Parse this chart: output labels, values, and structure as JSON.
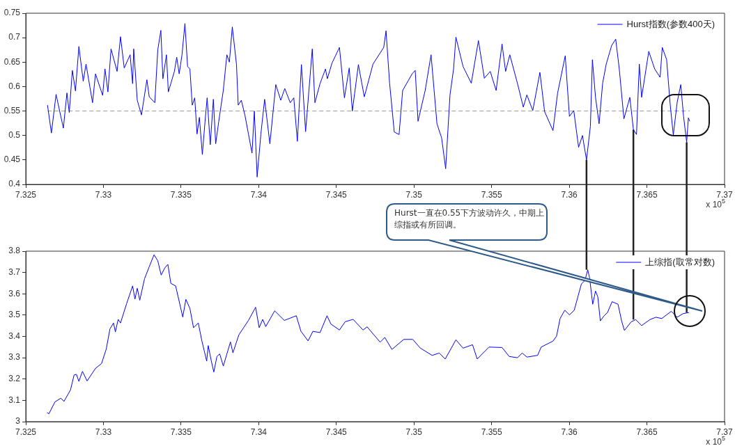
{
  "chart_data": [
    {
      "type": "line",
      "xlim": [
        7.325,
        7.37
      ],
      "xticks": [
        7.325,
        7.33,
        7.335,
        7.34,
        7.345,
        7.35,
        7.355,
        7.36,
        7.365,
        7.37
      ],
      "ylim": [
        0.4,
        0.75
      ],
      "yticks": [
        0.4,
        0.45,
        0.5,
        0.55,
        0.6,
        0.65,
        0.7,
        0.75
      ],
      "grid": false,
      "legend": "top right",
      "marker": "none",
      "line_style": "solid",
      "ref_lines": [
        {
          "axis": "y",
          "value": 0.55,
          "color": "#999999",
          "line_style": "dashed"
        },
        {
          "axis": "x",
          "value": 7.36111,
          "color": "#222222",
          "line_style": "solid"
        },
        {
          "axis": "x",
          "value": 7.36413,
          "color": "#222222",
          "line_style": "solid"
        },
        {
          "axis": "x",
          "value": 7.36756,
          "color": "#222222",
          "line_style": "solid"
        }
      ],
      "annotations": [
        "x 10$^{5}$"
      ],
      "series": [
        {
          "name": "Hurst指数(参数400天)",
          "color": "#0000ff",
          "x": [
            7.3264,
            7.32665,
            7.32695,
            7.32742,
            7.32765,
            7.3278,
            7.328,
            7.3282,
            7.32842,
            7.3287,
            7.32888,
            7.3293,
            7.32949,
            7.32995,
            7.3301,
            7.33029,
            7.33049,
            7.33088,
            7.3311,
            7.33134,
            7.33172,
            7.33188,
            7.33195,
            7.33218,
            7.33245,
            7.3328,
            7.33295,
            7.33331,
            7.3335,
            7.3337,
            7.33383,
            7.33406,
            7.33418,
            7.33457,
            7.33472,
            7.33488,
            7.33506,
            7.33525,
            7.33542,
            7.33557,
            7.33572,
            7.33588,
            7.33603,
            7.33618,
            7.33637,
            7.33654,
            7.33668,
            7.33688,
            7.33708,
            7.33723,
            7.33742,
            7.33772,
            7.33795,
            7.33811,
            7.3383,
            7.33857,
            7.33868,
            7.33888,
            7.33911,
            7.33934,
            7.33957,
            7.33972,
            7.3399,
            7.34014,
            7.34038,
            7.34072,
            7.3411,
            7.34142,
            7.34168,
            7.34203,
            7.34226,
            7.34249,
            7.34275,
            7.34302,
            7.34345,
            7.34362,
            7.34395,
            7.3443,
            7.34442,
            7.34472,
            7.3452,
            7.34552,
            7.34583,
            7.34603,
            7.34642,
            7.3468,
            7.34736,
            7.34805,
            7.3482,
            7.34843,
            7.34873,
            7.34904,
            7.34927,
            7.34988,
            7.35008,
            7.35026,
            7.35072,
            7.3511,
            7.35148,
            7.35178,
            7.35204,
            7.35232,
            7.35255,
            7.3527,
            7.35316,
            7.35369,
            7.35415,
            7.35453,
            7.35491,
            7.35529,
            7.35567,
            7.3559,
            7.35617,
            7.35666,
            7.35704,
            7.35727,
            7.35765,
            7.35811,
            7.35841,
            7.35895,
            7.35925,
            7.35974,
            7.36001,
            7.36029,
            7.3606,
            7.36085,
            7.36111,
            7.36136,
            7.36149,
            7.36169,
            7.36192,
            7.36215,
            7.36238,
            7.36273,
            7.36299,
            7.36322,
            7.36352,
            7.3639,
            7.36413,
            7.36433,
            7.36451,
            7.36466,
            7.36512,
            7.3655,
            7.36585,
            7.36599,
            7.36627,
            7.3665,
            7.3667,
            7.36695,
            7.36718,
            7.36736,
            7.36756,
            7.36767,
            7.36776
          ],
          "values": [
            0.562,
            0.505,
            0.584,
            0.515,
            0.587,
            0.547,
            0.633,
            0.591,
            0.682,
            0.611,
            0.646,
            0.567,
            0.626,
            0.582,
            0.636,
            0.589,
            0.677,
            0.631,
            0.702,
            0.638,
            0.665,
            0.606,
            0.677,
            0.572,
            0.542,
            0.614,
            0.579,
            0.567,
            0.675,
            0.715,
            0.616,
            0.665,
            0.589,
            0.631,
            0.66,
            0.626,
            0.665,
            0.729,
            0.641,
            0.636,
            0.562,
            0.577,
            0.503,
            0.537,
            0.461,
            0.527,
            0.577,
            0.481,
            0.574,
            0.483,
            0.527,
            0.592,
            0.665,
            0.65,
            0.722,
            0.645,
            0.562,
            0.572,
            0.542,
            0.503,
            0.464,
            0.55,
            0.415,
            0.503,
            0.574,
            0.483,
            0.604,
            0.572,
            0.596,
            0.567,
            0.577,
            0.488,
            0.645,
            0.508,
            0.677,
            0.567,
            0.606,
            0.636,
            0.616,
            0.648,
            0.68,
            0.577,
            0.638,
            0.55,
            0.645,
            0.579,
            0.646,
            0.68,
            0.714,
            0.607,
            0.507,
            0.502,
            0.592,
            0.626,
            0.633,
            0.529,
            0.592,
            0.665,
            0.524,
            0.495,
            0.432,
            0.583,
            0.636,
            0.701,
            0.641,
            0.607,
            0.694,
            0.617,
            0.631,
            0.592,
            0.687,
            0.631,
            0.665,
            0.607,
            0.558,
            0.583,
            0.551,
            0.629,
            0.549,
            0.51,
            0.587,
            0.663,
            0.539,
            0.551,
            0.476,
            0.5,
            0.45,
            0.519,
            0.655,
            0.578,
            0.524,
            0.607,
            0.646,
            0.684,
            0.697,
            0.636,
            0.534,
            0.578,
            0.512,
            0.502,
            0.646,
            0.578,
            0.672,
            0.636,
            0.619,
            0.68,
            0.655,
            0.563,
            0.501,
            0.568,
            0.604,
            0.539,
            0.486,
            0.536,
            0.529
          ]
        }
      ]
    },
    {
      "type": "line",
      "xlim": [
        7.325,
        7.37
      ],
      "xticks": [
        7.325,
        7.33,
        7.335,
        7.34,
        7.345,
        7.35,
        7.355,
        7.36,
        7.365,
        7.37
      ],
      "ylim": [
        3,
        3.8
      ],
      "yticks": [
        3,
        3.1,
        3.2,
        3.3,
        3.4,
        3.5,
        3.6,
        3.7,
        3.8
      ],
      "grid": false,
      "legend": "top right",
      "marker": "none",
      "line_style": "solid",
      "ref_lines": [
        {
          "axis": "x",
          "value": 7.36111,
          "color": "#222222",
          "line_style": "solid"
        },
        {
          "axis": "x",
          "value": 7.36413,
          "color": "#222222",
          "line_style": "solid"
        },
        {
          "axis": "x",
          "value": 7.36756,
          "color": "#222222",
          "line_style": "solid"
        }
      ],
      "annotations": [
        "x 10$^{5}$",
        "Hurst一直在0.55下方波动许久，中期上综指或有所回调。"
      ],
      "series": [
        {
          "name": "上综指(取常对数)",
          "color": "#0000ff",
          "x": [
            7.32637,
            7.32649,
            7.32688,
            7.32726,
            7.32746,
            7.32788,
            7.32811,
            7.32826,
            7.32842,
            7.32865,
            7.32895,
            7.32949,
            7.32988,
            7.33018,
            7.33042,
            7.33065,
            7.33077,
            7.33095,
            7.3311,
            7.33149,
            7.33188,
            7.33203,
            7.33218,
            7.33234,
            7.33265,
            7.33295,
            7.33326,
            7.3335,
            7.33372,
            7.33395,
            7.33415,
            7.33434,
            7.33465,
            7.33495,
            7.33511,
            7.33531,
            7.33557,
            7.3358,
            7.33611,
            7.33634,
            7.33665,
            7.33675,
            7.33695,
            7.33711,
            7.33731,
            7.33749,
            7.33772,
            7.33818,
            7.33834,
            7.33872,
            7.33934,
            7.3398,
            7.34003,
            7.34026,
            7.34045,
            7.34103,
            7.34165,
            7.34242,
            7.34272,
            7.34318,
            7.34349,
            7.34395,
            7.3444,
            7.34465,
            7.3452,
            7.34557,
            7.34608,
            7.34672,
            7.34698,
            7.34782,
            7.34812,
            7.34858,
            7.34934,
            7.34992,
            7.35041,
            7.35117,
            7.35163,
            7.35201,
            7.3527,
            7.35316,
            7.35377,
            7.35407,
            7.35483,
            7.35567,
            7.35613,
            7.35666,
            7.35697,
            7.35727,
            7.35796,
            7.35819,
            7.35895,
            7.35918,
            7.35941,
            7.35971,
            7.36001,
            7.36032,
            7.36078,
            7.36101,
            7.36119,
            7.36131,
            7.36151,
            7.36169,
            7.36184,
            7.362,
            7.36223,
            7.36246,
            7.36276,
            7.36314,
            7.36337,
            7.36355,
            7.36398,
            7.36428,
            7.36466,
            7.3652,
            7.36558,
            7.36596,
            7.36657,
            7.36695,
            7.36733,
            7.36771
          ],
          "values": [
            3.043,
            3.037,
            3.093,
            3.11,
            3.095,
            3.149,
            3.219,
            3.222,
            3.189,
            3.236,
            3.191,
            3.25,
            3.273,
            3.34,
            3.435,
            3.463,
            3.421,
            3.48,
            3.463,
            3.553,
            3.637,
            3.575,
            3.626,
            3.57,
            3.671,
            3.727,
            3.783,
            3.755,
            3.688,
            3.721,
            3.738,
            3.649,
            3.637,
            3.542,
            3.491,
            3.574,
            3.531,
            3.441,
            3.463,
            3.379,
            3.284,
            3.357,
            3.284,
            3.233,
            3.306,
            3.318,
            3.261,
            3.374,
            3.323,
            3.407,
            3.475,
            3.537,
            3.441,
            3.48,
            3.446,
            3.52,
            3.475,
            3.497,
            3.424,
            3.379,
            3.424,
            3.418,
            3.497,
            3.458,
            3.43,
            3.469,
            3.48,
            3.43,
            3.445,
            3.373,
            3.395,
            3.339,
            3.386,
            3.386,
            3.345,
            3.311,
            3.322,
            3.294,
            3.384,
            3.345,
            3.361,
            3.294,
            3.35,
            3.348,
            3.306,
            3.3,
            3.322,
            3.303,
            3.311,
            3.35,
            3.378,
            3.401,
            3.484,
            3.523,
            3.501,
            3.523,
            3.646,
            3.663,
            3.713,
            3.674,
            3.551,
            3.613,
            3.585,
            3.473,
            3.496,
            3.512,
            3.563,
            3.551,
            3.473,
            3.428,
            3.468,
            3.479,
            3.451,
            3.479,
            3.49,
            3.484,
            3.518,
            3.49,
            3.507,
            3.512
          ]
        }
      ]
    }
  ]
}
